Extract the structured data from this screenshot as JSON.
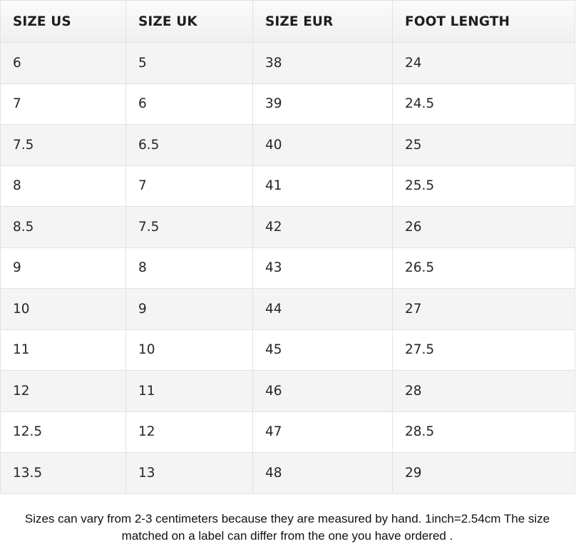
{
  "table": {
    "headers": [
      "SIZE US",
      "SIZE UK",
      "SIZE EUR",
      "FOOT LENGTH"
    ],
    "rows": [
      [
        "6",
        "5",
        "38",
        "24"
      ],
      [
        "7",
        "6",
        "39",
        "24.5"
      ],
      [
        "7.5",
        "6.5",
        "40",
        "25"
      ],
      [
        "8",
        "7",
        "41",
        "25.5"
      ],
      [
        "8.5",
        "7.5",
        "42",
        "26"
      ],
      [
        "9",
        "8",
        "43",
        "26.5"
      ],
      [
        "10",
        "9",
        "44",
        "27"
      ],
      [
        "11",
        "10",
        "45",
        "27.5"
      ],
      [
        "12",
        "11",
        "46",
        "28"
      ],
      [
        "12.5",
        "12",
        "47",
        "28.5"
      ],
      [
        "13.5",
        "13",
        "48",
        "29"
      ]
    ]
  },
  "note": {
    "line1": "Sizes can vary from 2-3 centimeters because they are measured by hand. 1inch=2.54cm The size",
    "line2": "matched on a label can differ from the one you have ordered ."
  }
}
